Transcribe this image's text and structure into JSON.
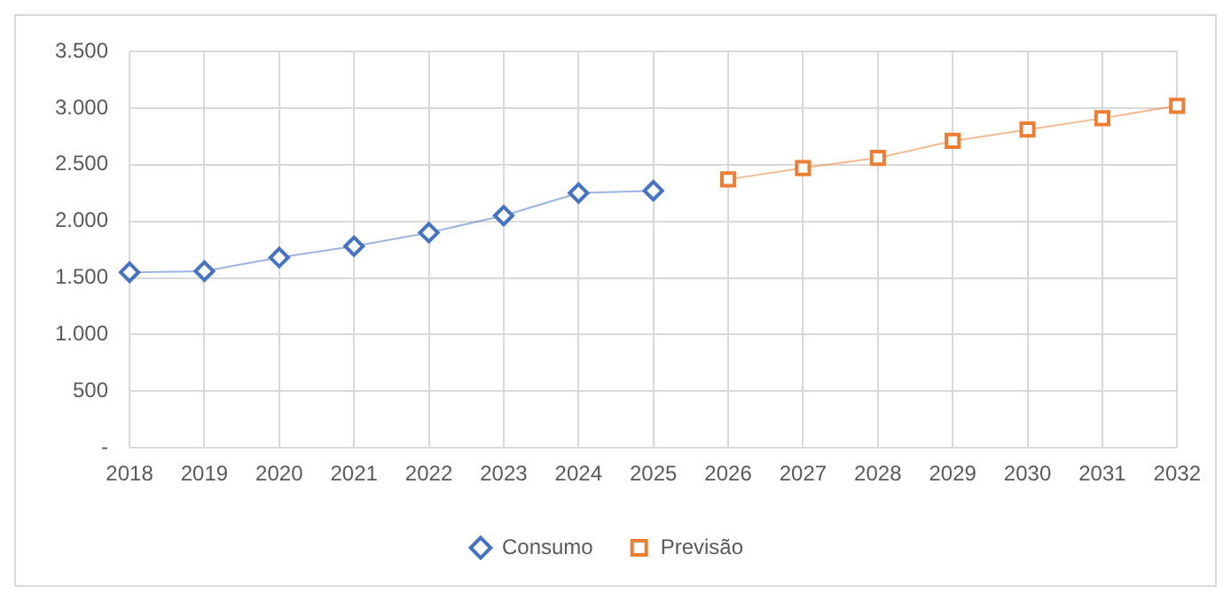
{
  "chart_data": {
    "type": "line",
    "categories": [
      "2018",
      "2019",
      "2020",
      "2021",
      "2022",
      "2023",
      "2024",
      "2025",
      "2026",
      "2027",
      "2028",
      "2029",
      "2030",
      "2031",
      "2032"
    ],
    "series": [
      {
        "name": "Consumo",
        "color": "#4472c4",
        "marker": "diamond",
        "values": [
          1550,
          1560,
          1680,
          1780,
          1900,
          2050,
          2250,
          2270,
          null,
          null,
          null,
          null,
          null,
          null,
          null
        ]
      },
      {
        "name": "Previsão",
        "color": "#ed7d31",
        "marker": "square",
        "values": [
          null,
          null,
          null,
          null,
          null,
          null,
          null,
          null,
          2370,
          2470,
          2560,
          2710,
          2810,
          2910,
          3020
        ]
      }
    ],
    "ylim": [
      0,
      3500
    ],
    "yticks": [
      {
        "value": 0,
        "label": "-"
      },
      {
        "value": 500,
        "label": "500"
      },
      {
        "value": 1000,
        "label": "1.000"
      },
      {
        "value": 1500,
        "label": "1.500"
      },
      {
        "value": 2000,
        "label": "2.000"
      },
      {
        "value": 2500,
        "label": "2.500"
      },
      {
        "value": 3000,
        "label": "3.000"
      },
      {
        "value": 3500,
        "label": "3.500"
      }
    ],
    "grid": true,
    "legend": "bottom"
  }
}
